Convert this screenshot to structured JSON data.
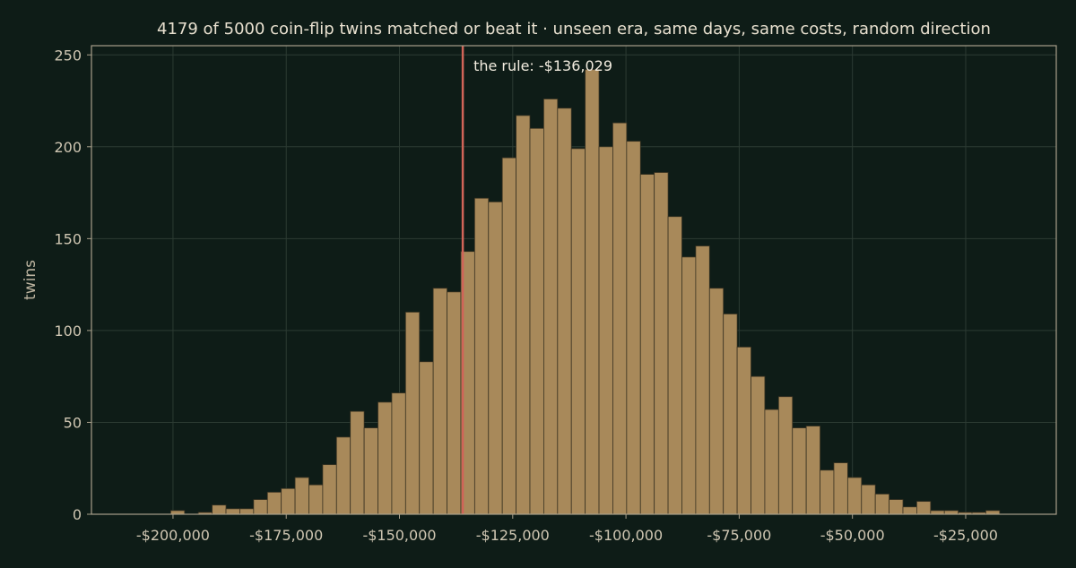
{
  "chart_data": {
    "type": "bar",
    "title": "4179 of 5000 coin-flip twins matched or beat it  ·  unseen era, same days, same costs, random direction",
    "xlabel": "",
    "ylabel": "twins",
    "xlim": [
      -218000,
      -5000
    ],
    "ylim": [
      0,
      255
    ],
    "x_ticks": [
      -200000,
      -175000,
      -150000,
      -125000,
      -100000,
      -75000,
      -50000,
      -25000
    ],
    "x_tick_labels": [
      "-$200,000",
      "-$175,000",
      "-$150,000",
      "-$125,000",
      "-$100,000",
      "-$75,000",
      "-$50,000",
      "-$25,000"
    ],
    "y_ticks": [
      0,
      50,
      100,
      150,
      200,
      250
    ],
    "y_tick_labels": [
      "0",
      "50",
      "100",
      "150",
      "200",
      "250"
    ],
    "grid": true,
    "bin_start": -200500,
    "bin_width": 3050,
    "counts": [
      2,
      0,
      1,
      5,
      3,
      3,
      8,
      12,
      14,
      20,
      16,
      27,
      42,
      56,
      47,
      61,
      66,
      110,
      83,
      123,
      121,
      143,
      172,
      170,
      194,
      217,
      210,
      226,
      221,
      199,
      242,
      200,
      213,
      203,
      185,
      186,
      162,
      140,
      146,
      123,
      109,
      91,
      75,
      57,
      64,
      47,
      48,
      24,
      28,
      20,
      16,
      11,
      8,
      4,
      7,
      2,
      2,
      1,
      1,
      2
    ],
    "bar_color": "#a8895a",
    "background_color": "#0e1c17",
    "marker": {
      "value": -136029,
      "label": "the rule: -$136,029",
      "color": "#d06458"
    }
  }
}
